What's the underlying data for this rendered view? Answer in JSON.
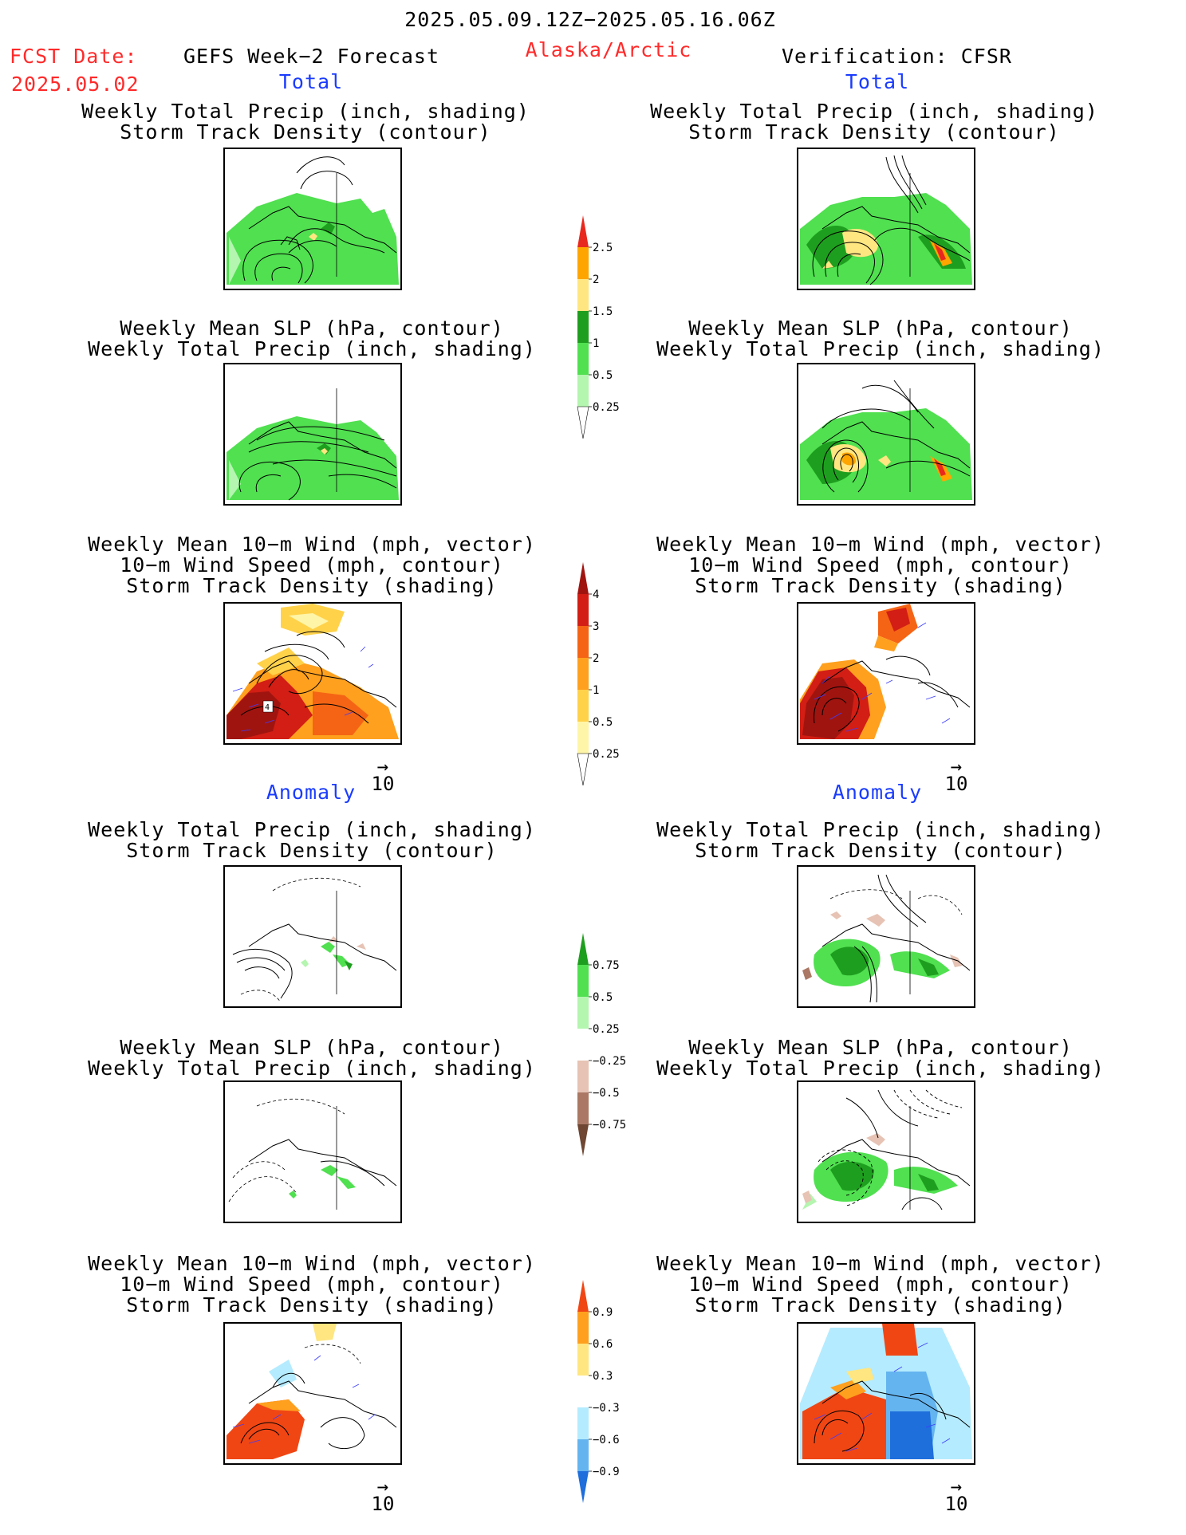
{
  "header": {
    "date_range": "2025.05.09.12Z−2025.05.16.06Z",
    "fcst_label": "FCST Date:",
    "fcst_date": "2025.05.02",
    "product": "GEFS Week−2 Forecast",
    "region": "Alaska/Arctic",
    "verification": "Verification: CFSR"
  },
  "sections": {
    "total_left": "Total",
    "total_right": "Total",
    "anomaly_left": "Anomaly",
    "anomaly_right": "Anomaly"
  },
  "titles": {
    "precip_track": [
      "Weekly Total Precip (inch, shading)",
      "Storm Track Density (contour)"
    ],
    "slp_precip": [
      "Weekly Mean SLP (hPa, contour)",
      "Weekly Total Precip (inch, shading)"
    ],
    "wind": [
      "Weekly Mean 10−m Wind (mph, vector)",
      "10−m Wind Speed (mph, contour)",
      "Storm Track Density (shading)"
    ]
  },
  "vector_scale": "10",
  "panel_labels": {
    "wind_max_marker": "4"
  },
  "colors": {
    "precip_green_light": "#b4f5b0",
    "precip_green": "#50e050",
    "precip_green_dark": "#1e9e1e",
    "precip_yellow": "#ffe680",
    "precip_orange": "#ffa500",
    "precip_red": "#e8281e",
    "track_lightyellow": "#fff5a8",
    "track_yellow": "#ffd24a",
    "track_orange": "#ffa01e",
    "track_darkorange": "#f56414",
    "track_red": "#d21e14",
    "track_darkred": "#a0140f",
    "anom_brown_light": "#e6c3b4",
    "anom_brown": "#aa7864",
    "anom_brown_dark": "#6e4632",
    "anom_blue_light": "#b4ebff",
    "anom_blue": "#64b4f0",
    "anom_blue_dark": "#1e6edc",
    "vector_blue": "#3c3cff"
  },
  "colorbars": [
    {
      "id": "precip_total",
      "labels": [
        "2.5",
        "2",
        "1.5",
        "1",
        "0.5",
        "0.25"
      ],
      "colors": [
        "#e8281e",
        "#ffa500",
        "#ffe680",
        "#1e9e1e",
        "#50e050",
        "#b4f5b0",
        "#ffffff"
      ]
    },
    {
      "id": "track_total",
      "labels": [
        "4",
        "3",
        "2",
        "1",
        "0.5",
        "0.25"
      ],
      "colors": [
        "#a0140f",
        "#d21e14",
        "#f56414",
        "#ffa01e",
        "#ffd24a",
        "#fff5a8",
        "#ffffff"
      ]
    },
    {
      "id": "precip_anom",
      "labels": [
        "0.75",
        "0.5",
        "0.25",
        "−0.25",
        "−0.5",
        "−0.75"
      ],
      "colors": [
        "#1e9e1e",
        "#50e050",
        "#b4f5b0",
        "#ffffff",
        "#e6c3b4",
        "#aa7864",
        "#6e4632"
      ]
    },
    {
      "id": "track_anom",
      "labels": [
        "0.9",
        "0.6",
        "0.3",
        "−0.3",
        "−0.6",
        "−0.9"
      ],
      "colors": [
        "#f04614",
        "#ffa01e",
        "#ffe680",
        "#ffffff",
        "#b4ebff",
        "#64b4f0",
        "#1e6edc"
      ]
    }
  ]
}
